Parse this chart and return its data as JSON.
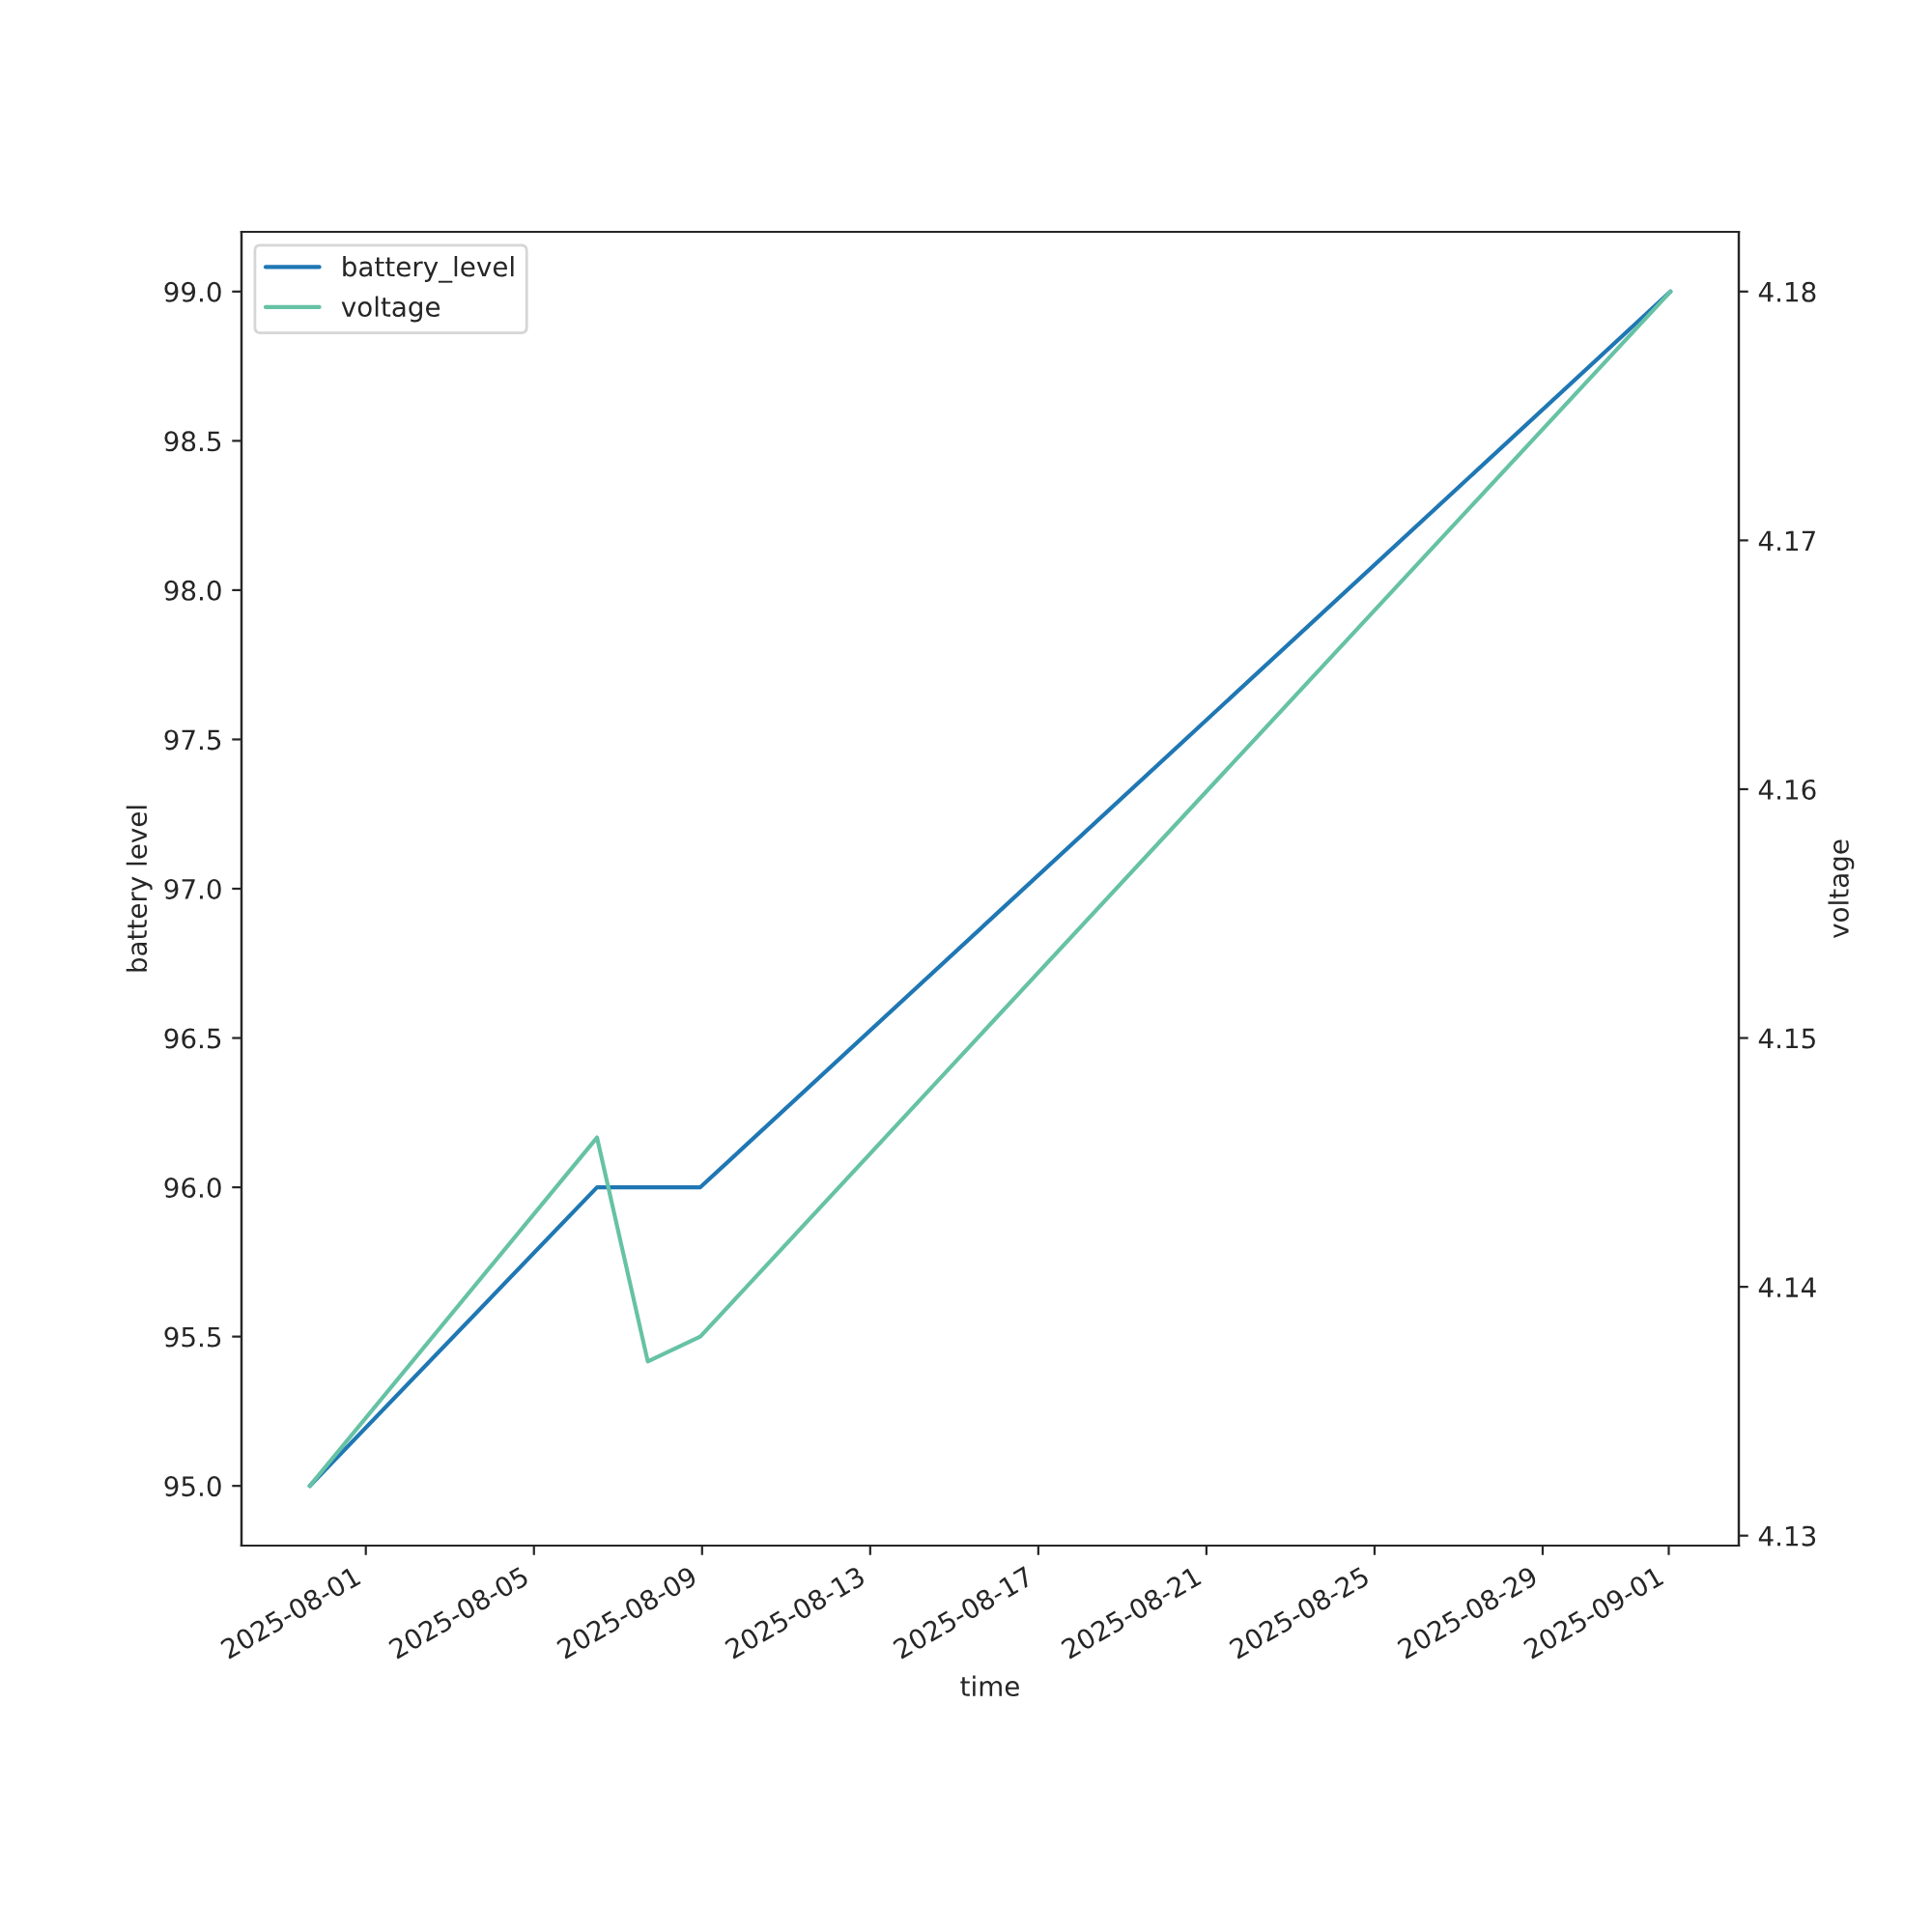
{
  "chart_data": {
    "type": "line",
    "xlabel": "time",
    "ylabel": "battery level",
    "y2label": "voltage",
    "x": [
      "2025-07-30T16:00",
      "2025-08-06T12:00",
      "2025-08-07T17:00",
      "2025-08-08T23:00",
      "2025-09-01T01:00"
    ],
    "series": [
      {
        "name": "battery_level",
        "color": "#1f77b4",
        "x": [
          "2025-07-30T16:00",
          "2025-08-06T12:00",
          "2025-08-08T23:00",
          "2025-09-01T01:00"
        ],
        "values": [
          95.0,
          96.0,
          96.0,
          99.0
        ]
      },
      {
        "name": "voltage",
        "color": "#66c2a5",
        "axis": "y2",
        "values": [
          4.132,
          4.146,
          4.137,
          4.138,
          4.18
        ]
      }
    ],
    "xlim": [
      "2025-07-29T01:00",
      "2025-09-02T16:00"
    ],
    "xticks": [
      "2025-08-01",
      "2025-08-05",
      "2025-08-09",
      "2025-08-13",
      "2025-08-17",
      "2025-08-21",
      "2025-08-25",
      "2025-08-29",
      "2025-09-01"
    ],
    "ylim": [
      94.8,
      99.2
    ],
    "yticks": [
      {
        "value": 95,
        "label": "95.0"
      },
      {
        "value": 95.5,
        "label": "95.5"
      },
      {
        "value": 96,
        "label": "96.0"
      },
      {
        "value": 96.5,
        "label": "96.5"
      },
      {
        "value": 97,
        "label": "97.0"
      },
      {
        "value": 97.5,
        "label": "97.5"
      },
      {
        "value": 98,
        "label": "98.0"
      },
      {
        "value": 98.5,
        "label": "98.5"
      },
      {
        "value": 99,
        "label": "99.0"
      }
    ],
    "y2lim": [
      4.1296,
      4.1824
    ],
    "y2ticks": [
      {
        "value": 4.13,
        "label": "4.13"
      },
      {
        "value": 4.14,
        "label": "4.14"
      },
      4.15,
      4.16,
      4.17,
      {
        "value": 4.18,
        "label": "4.18"
      }
    ],
    "legend": "top left",
    "grid": false
  }
}
